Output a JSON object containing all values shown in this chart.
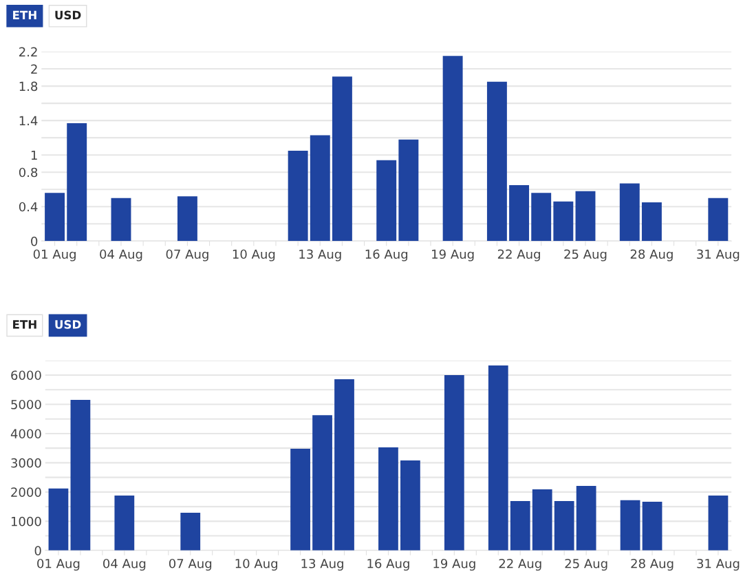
{
  "chart_data": [
    {
      "type": "bar",
      "annotations": [
        "ETH",
        "USD"
      ],
      "color": "#1f44a0",
      "categories": [
        "01 Aug",
        null,
        null,
        "04 Aug",
        null,
        null,
        "07 Aug",
        null,
        null,
        "10 Aug",
        null,
        null,
        "13 Aug",
        null,
        null,
        "16 Aug",
        null,
        null,
        "19 Aug",
        null,
        null,
        "22 Aug",
        null,
        null,
        "25 Aug",
        null,
        null,
        "28 Aug",
        null,
        null,
        "31 Aug"
      ],
      "values": [
        0.56,
        1.37,
        null,
        0.5,
        null,
        null,
        0.52,
        null,
        null,
        null,
        null,
        1.05,
        1.23,
        1.91,
        null,
        0.94,
        1.18,
        null,
        2.15,
        null,
        1.85,
        0.65,
        0.56,
        0.46,
        0.58,
        null,
        0.67,
        0.45,
        null,
        null,
        0.5
      ],
      "ylim": [
        0,
        2.2
      ],
      "yticks": [
        0,
        {
          "value": 0.2,
          "label": null
        },
        0.4,
        {
          "value": 0.6,
          "label": null
        },
        0.8,
        1,
        {
          "value": 1.2,
          "label": null
        },
        1.4,
        {
          "value": 1.6,
          "label": null
        },
        1.8,
        2,
        2.2
      ],
      "grid": "y"
    },
    {
      "type": "bar",
      "annotations": [
        "ETH",
        "USD"
      ],
      "color": "#1f44a0",
      "categories": [
        "01 Aug",
        null,
        null,
        "04 Aug",
        null,
        null,
        "07 Aug",
        null,
        null,
        "10 Aug",
        null,
        null,
        "13 Aug",
        null,
        null,
        "16 Aug",
        null,
        null,
        "19 Aug",
        null,
        null,
        "22 Aug",
        null,
        null,
        "25 Aug",
        null,
        null,
        "28 Aug",
        null,
        null,
        "31 Aug"
      ],
      "values": [
        2120,
        5150,
        null,
        1880,
        null,
        null,
        1290,
        null,
        null,
        null,
        null,
        3480,
        4630,
        5860,
        null,
        3530,
        3080,
        null,
        6000,
        null,
        6330,
        1690,
        2090,
        1690,
        2210,
        null,
        1720,
        1670,
        null,
        null,
        1880
      ],
      "ylim": [
        0,
        6500
      ],
      "yticks": [
        0,
        {
          "value": 500,
          "label": null
        },
        1000,
        {
          "value": 1500,
          "label": null
        },
        2000,
        {
          "value": 2500,
          "label": null
        },
        3000,
        {
          "value": 3500,
          "label": null
        },
        4000,
        {
          "value": 4500,
          "label": null
        },
        5000,
        {
          "value": 5500,
          "label": null
        },
        6000,
        {
          "value": 6500,
          "label": null
        }
      ],
      "grid": "y"
    }
  ]
}
